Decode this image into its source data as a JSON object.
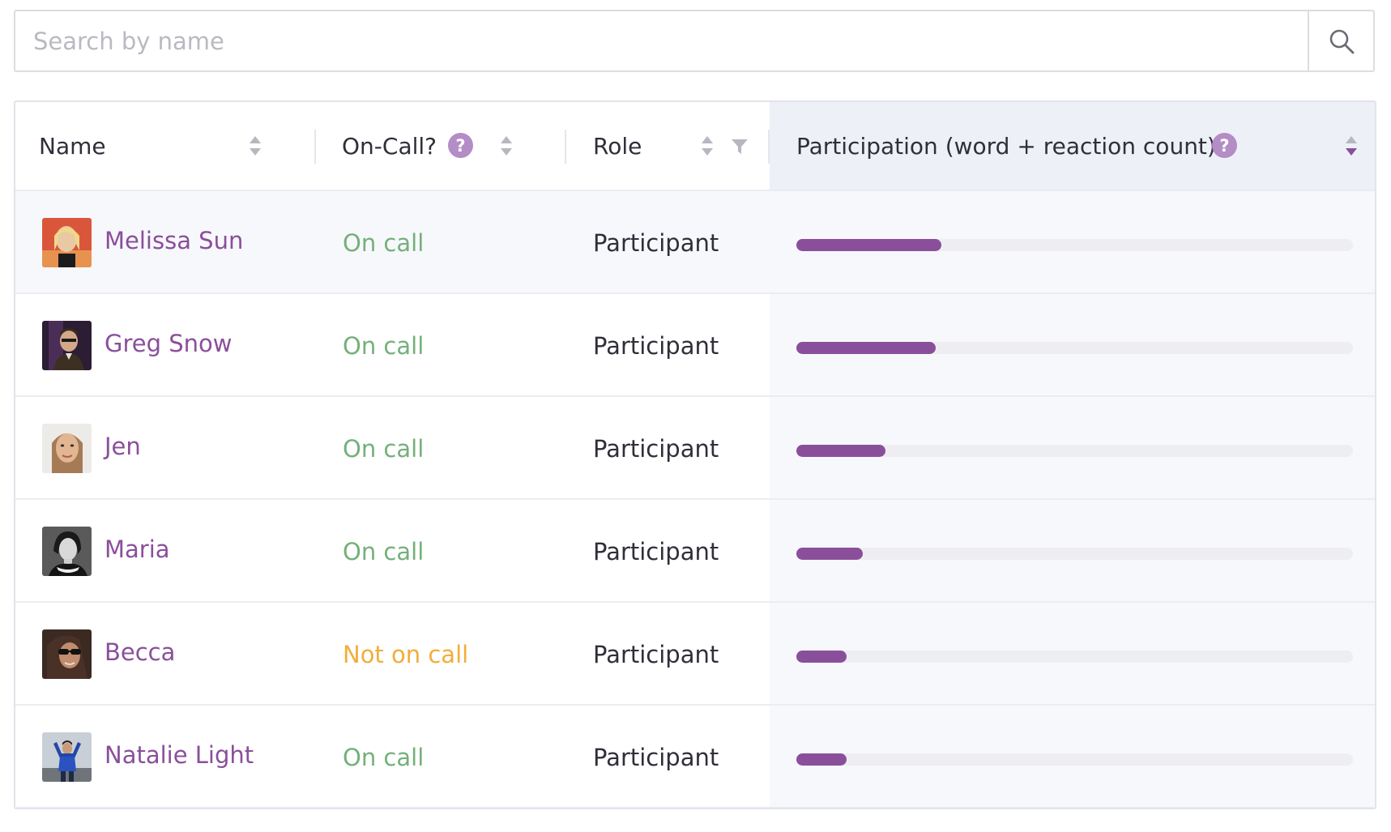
{
  "search": {
    "placeholder": "Search by name",
    "value": ""
  },
  "table": {
    "columns": {
      "name": "Name",
      "on_call": "On-Call?",
      "role": "Role",
      "participation": "Participation (word + reaction count)"
    },
    "help_glyph": "?",
    "sort": {
      "column": "participation",
      "direction": "descending"
    },
    "rows": [
      {
        "name": "Melissa Sun",
        "on_call": "On call",
        "on_call_state": "on",
        "role": "Participant",
        "participation": 0.26
      },
      {
        "name": "Greg Snow",
        "on_call": "On call",
        "on_call_state": "on",
        "role": "Participant",
        "participation": 0.25
      },
      {
        "name": "Jen",
        "on_call": "On call",
        "on_call_state": "on",
        "role": "Participant",
        "participation": 0.16
      },
      {
        "name": "Maria",
        "on_call": "On call",
        "on_call_state": "on",
        "role": "Participant",
        "participation": 0.12
      },
      {
        "name": "Becca",
        "on_call": "Not on call",
        "on_call_state": "off",
        "role": "Participant",
        "participation": 0.09
      },
      {
        "name": "Natalie Light",
        "on_call": "On call",
        "on_call_state": "on",
        "role": "Participant",
        "participation": 0.09
      }
    ]
  },
  "colors": {
    "accent": "#8a4f9b",
    "on_call": "#74b07a",
    "not_on_call": "#f0ae3b",
    "help_badge": "#b48cc6",
    "bar_track": "#eeeef2"
  },
  "icons": {
    "search_button": "search-icon",
    "help": "help-icon",
    "sort": "sort-icon",
    "filter": "filter-icon"
  }
}
